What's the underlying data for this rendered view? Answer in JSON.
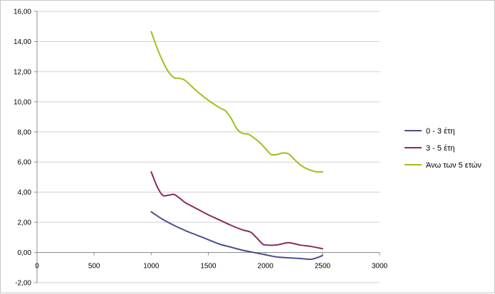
{
  "chart_data": {
    "type": "scatter",
    "title": "",
    "xlabel": "",
    "ylabel": "",
    "xlim": [
      0,
      3000
    ],
    "ylim": [
      -2,
      16
    ],
    "x_ticks": [
      0,
      500,
      1000,
      1500,
      2000,
      2500,
      3000
    ],
    "y_ticks": [
      -2,
      0,
      2,
      4,
      6,
      8,
      10,
      12,
      14,
      16
    ],
    "x_tick_labels": [
      "0",
      "500",
      "1000",
      "1500",
      "2000",
      "2500",
      "3000"
    ],
    "y_tick_labels": [
      "-2,00",
      "0,00",
      "2,00",
      "4,00",
      "6,00",
      "8,00",
      "10,00",
      "12,00",
      "14,00",
      "16,00"
    ],
    "grid": "horizontal",
    "legend_position": "right",
    "series": [
      {
        "name": "0 - 3 έτη",
        "color": "#4b4f8e",
        "points": [
          [
            1000,
            2.7
          ],
          [
            1100,
            2.2
          ],
          [
            1200,
            1.8
          ],
          [
            1300,
            1.45
          ],
          [
            1400,
            1.15
          ],
          [
            1500,
            0.85
          ],
          [
            1600,
            0.55
          ],
          [
            1700,
            0.35
          ],
          [
            1800,
            0.15
          ],
          [
            1900,
            0.0
          ],
          [
            2000,
            -0.15
          ],
          [
            2100,
            -0.3
          ],
          [
            2200,
            -0.35
          ],
          [
            2300,
            -0.4
          ],
          [
            2400,
            -0.45
          ],
          [
            2450,
            -0.35
          ],
          [
            2500,
            -0.2
          ]
        ]
      },
      {
        "name": "3 - 5 έτη",
        "color": "#8b2a5c",
        "points": [
          [
            1000,
            5.35
          ],
          [
            1050,
            4.4
          ],
          [
            1100,
            3.8
          ],
          [
            1150,
            3.8
          ],
          [
            1200,
            3.85
          ],
          [
            1250,
            3.6
          ],
          [
            1300,
            3.3
          ],
          [
            1400,
            2.9
          ],
          [
            1500,
            2.5
          ],
          [
            1600,
            2.15
          ],
          [
            1700,
            1.8
          ],
          [
            1800,
            1.5
          ],
          [
            1870,
            1.35
          ],
          [
            1920,
            1.0
          ],
          [
            1970,
            0.6
          ],
          [
            2000,
            0.5
          ],
          [
            2100,
            0.5
          ],
          [
            2200,
            0.65
          ],
          [
            2300,
            0.5
          ],
          [
            2400,
            0.4
          ],
          [
            2500,
            0.25
          ]
        ]
      },
      {
        "name": "Άνω των 5 ετών",
        "color": "#99c21a",
        "points": [
          [
            1000,
            14.65
          ],
          [
            1050,
            13.6
          ],
          [
            1100,
            12.7
          ],
          [
            1150,
            12.0
          ],
          [
            1200,
            11.6
          ],
          [
            1250,
            11.55
          ],
          [
            1300,
            11.4
          ],
          [
            1400,
            10.7
          ],
          [
            1500,
            10.1
          ],
          [
            1600,
            9.6
          ],
          [
            1650,
            9.4
          ],
          [
            1700,
            8.9
          ],
          [
            1750,
            8.2
          ],
          [
            1800,
            7.9
          ],
          [
            1850,
            7.85
          ],
          [
            1900,
            7.6
          ],
          [
            1950,
            7.3
          ],
          [
            2000,
            6.9
          ],
          [
            2050,
            6.5
          ],
          [
            2100,
            6.5
          ],
          [
            2150,
            6.6
          ],
          [
            2200,
            6.55
          ],
          [
            2250,
            6.2
          ],
          [
            2300,
            5.85
          ],
          [
            2350,
            5.6
          ],
          [
            2400,
            5.45
          ],
          [
            2450,
            5.35
          ],
          [
            2500,
            5.35
          ]
        ]
      }
    ]
  }
}
